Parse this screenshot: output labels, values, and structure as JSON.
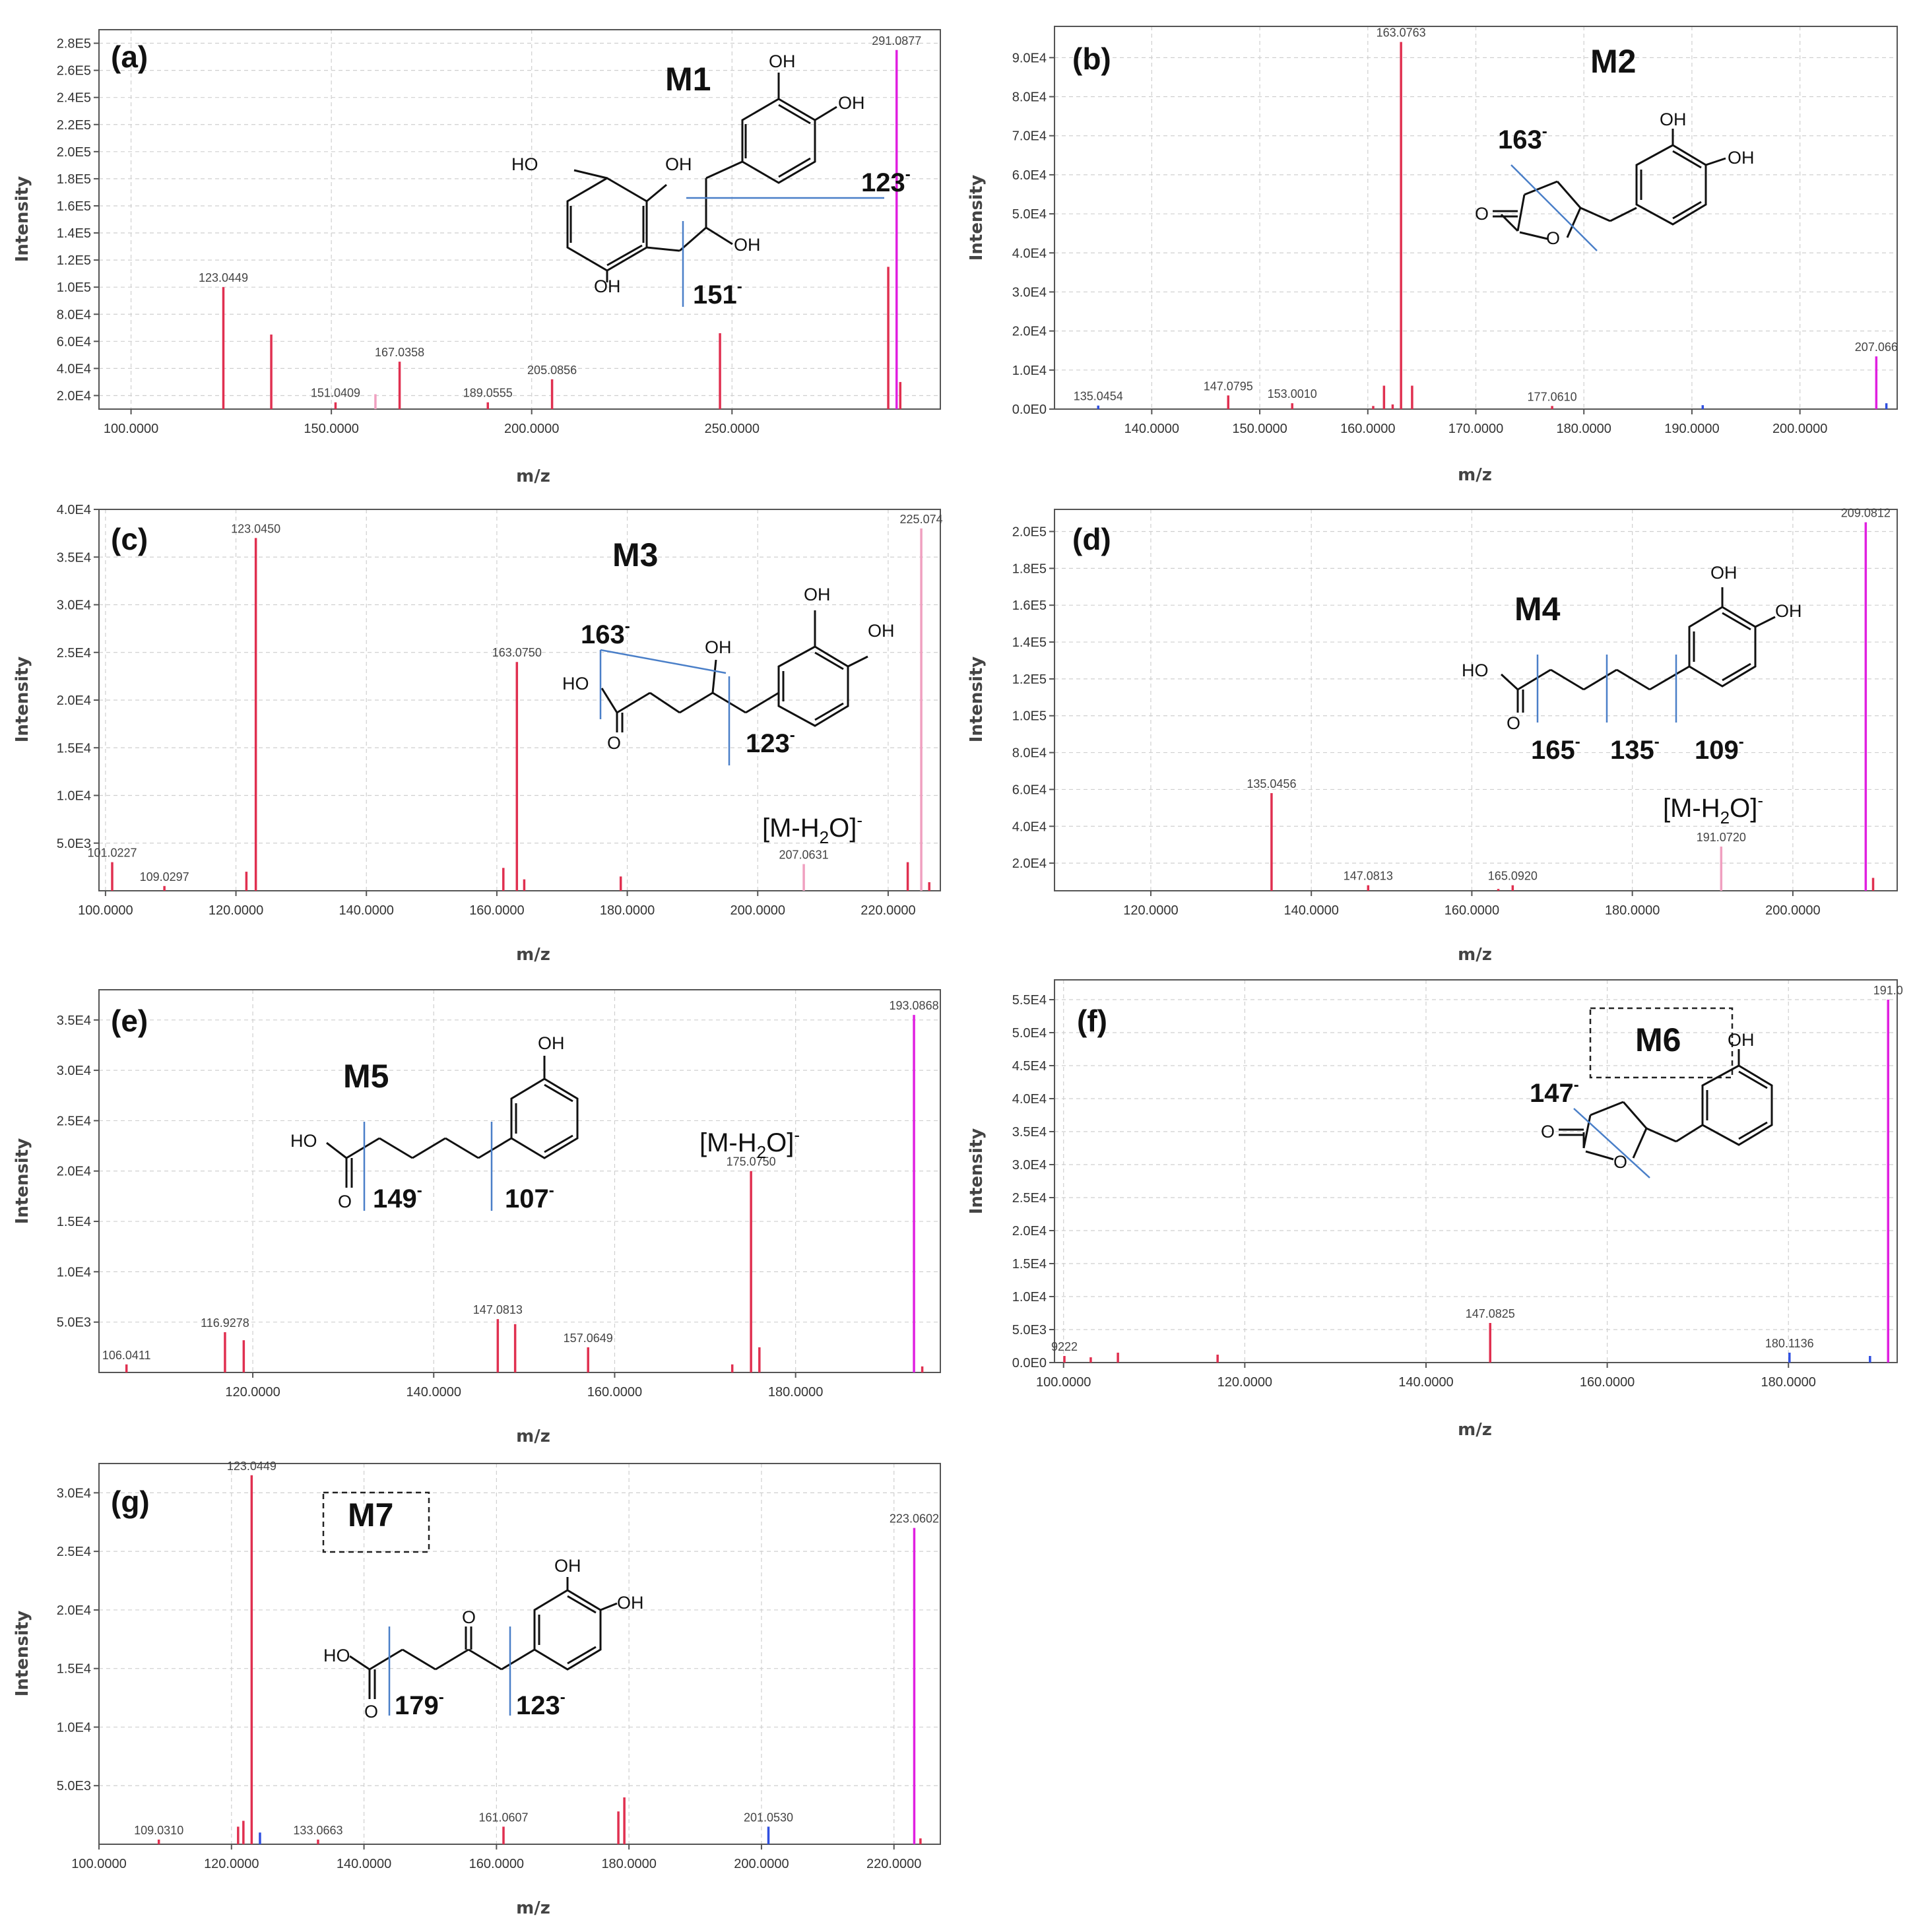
{
  "colors": {
    "peak_red": "#e03050",
    "peak_magenta": "#e020e0",
    "peak_pink": "#f0a0c0",
    "peak_blue": "#3050e0",
    "cut_line": "#4a7fc8",
    "grid": "#cfcfcf",
    "frame": "#555555"
  },
  "chart_data": [
    {
      "id": "a",
      "type": "bar",
      "panel_label": "(a)",
      "compound": "M1",
      "compound_boxed": false,
      "xlabel": "m/z",
      "ylabel": "Intensity",
      "xlim": [
        92,
        302
      ],
      "ylim": [
        10000,
        290000
      ],
      "xticks": [
        100,
        150,
        200,
        250
      ],
      "xtick_labels": [
        "100.0000",
        "150.0000",
        "200.0000",
        "250.0000"
      ],
      "yticks": [
        20000,
        40000,
        60000,
        80000,
        100000,
        120000,
        140000,
        160000,
        180000,
        200000,
        220000,
        240000,
        260000,
        280000
      ],
      "ytick_labels": [
        "2.0E4",
        "4.0E4",
        "6.0E4",
        "8.0E4",
        "1.0E5",
        "1.2E5",
        "1.4E5",
        "1.6E5",
        "1.8E5",
        "2.0E5",
        "2.2E5",
        "2.4E5",
        "2.6E5",
        "2.8E5"
      ],
      "peaks": [
        {
          "x": 123.0449,
          "y": 100000,
          "label": "123.0449",
          "color": "red"
        },
        {
          "x": 135.0,
          "y": 65000,
          "color": "red"
        },
        {
          "x": 151.0409,
          "y": 15000,
          "label": "151.0409",
          "color": "red"
        },
        {
          "x": 161.0,
          "y": 21000,
          "color": "pink"
        },
        {
          "x": 167.0358,
          "y": 45000,
          "label": "167.0358",
          "color": "red"
        },
        {
          "x": 189.0555,
          "y": 15000,
          "label": "189.0555",
          "color": "red"
        },
        {
          "x": 205.0856,
          "y": 32000,
          "label": "205.0856",
          "color": "red"
        },
        {
          "x": 247.0,
          "y": 66000,
          "color": "red"
        },
        {
          "x": 289.0,
          "y": 115000,
          "color": "red"
        },
        {
          "x": 291.0877,
          "y": 275000,
          "label": "291.0877",
          "color": "magenta"
        },
        {
          "x": 292.0,
          "y": 30000,
          "color": "red"
        }
      ],
      "fragments": [
        "123",
        "151"
      ],
      "structure": {
        "OH_1": "OH",
        "OH_2": "OH",
        "OH_3": "OH",
        "OH_4": "OH",
        "HO_1": "HO",
        "OH_5": "OH"
      }
    },
    {
      "id": "b",
      "type": "bar",
      "panel_label": "(b)",
      "compound": "M2",
      "compound_boxed": false,
      "xlabel": "m/z",
      "ylabel": "Intensity",
      "xlim": [
        131,
        209
      ],
      "ylim": [
        0,
        98000
      ],
      "xticks": [
        140,
        150,
        160,
        170,
        180,
        190,
        200
      ],
      "xtick_labels": [
        "140.0000",
        "150.0000",
        "160.0000",
        "170.0000",
        "180.0000",
        "190.0000",
        "200.0000"
      ],
      "yticks": [
        0,
        10000,
        20000,
        30000,
        40000,
        50000,
        60000,
        70000,
        80000,
        90000
      ],
      "ytick_labels": [
        "0.0E0",
        "1.0E4",
        "2.0E4",
        "3.0E4",
        "4.0E4",
        "5.0E4",
        "6.0E4",
        "7.0E4",
        "8.0E4",
        "9.0E4"
      ],
      "peaks": [
        {
          "x": 135.0454,
          "y": 900,
          "label": "135.0454",
          "color": "blue"
        },
        {
          "x": 147.0795,
          "y": 3500,
          "label": "147.0795",
          "color": "red"
        },
        {
          "x": 153.001,
          "y": 1500,
          "label": "153.0010",
          "color": "red"
        },
        {
          "x": 160.5,
          "y": 800,
          "color": "red"
        },
        {
          "x": 161.5,
          "y": 6000,
          "color": "red"
        },
        {
          "x": 162.3,
          "y": 1200,
          "color": "red"
        },
        {
          "x": 163.0763,
          "y": 94000,
          "label": "163.0763",
          "color": "red"
        },
        {
          "x": 164.1,
          "y": 6000,
          "color": "red"
        },
        {
          "x": 177.061,
          "y": 800,
          "label": "177.0610",
          "color": "red"
        },
        {
          "x": 191.0,
          "y": 1000,
          "color": "blue"
        },
        {
          "x": 207.066,
          "y": 13500,
          "label": "207.066",
          "color": "magenta"
        },
        {
          "x": 208.0,
          "y": 1500,
          "color": "blue"
        }
      ],
      "fragments": [
        "163"
      ],
      "structure": {
        "OH_1": "OH",
        "OH_2": "OH",
        "O_ring": "O",
        "O_keto": "O"
      }
    },
    {
      "id": "c",
      "type": "bar",
      "panel_label": "(c)",
      "compound": "M3",
      "compound_boxed": false,
      "xlabel": "m/z",
      "ylabel": "Intensity",
      "xlim": [
        99,
        228
      ],
      "ylim": [
        0,
        40000
      ],
      "xticks": [
        100,
        120,
        140,
        160,
        180,
        200,
        220
      ],
      "xtick_labels": [
        "100.0000",
        "120.0000",
        "140.0000",
        "160.0000",
        "180.0000",
        "200.0000",
        "220.0000"
      ],
      "yticks": [
        5000,
        10000,
        15000,
        20000,
        25000,
        30000,
        35000,
        40000
      ],
      "ytick_labels": [
        "5.0E3",
        "1.0E4",
        "1.5E4",
        "2.0E4",
        "2.5E4",
        "3.0E4",
        "3.5E4",
        "4.0E4"
      ],
      "peaks": [
        {
          "x": 101.0227,
          "y": 3000,
          "label": "101.0227",
          "color": "red"
        },
        {
          "x": 109.0297,
          "y": 500,
          "label": "109.0297",
          "color": "red"
        },
        {
          "x": 121.6,
          "y": 2000,
          "color": "red"
        },
        {
          "x": 123.045,
          "y": 37000,
          "label": "123.0450",
          "color": "red"
        },
        {
          "x": 161.0,
          "y": 2400,
          "color": "red"
        },
        {
          "x": 163.075,
          "y": 24000,
          "label": "163.0750",
          "color": "red"
        },
        {
          "x": 164.2,
          "y": 1200,
          "color": "red"
        },
        {
          "x": 179.0,
          "y": 1500,
          "color": "red"
        },
        {
          "x": 207.0631,
          "y": 2800,
          "label": "207.0631",
          "color": "pink"
        },
        {
          "x": 223.0,
          "y": 3000,
          "color": "red"
        },
        {
          "x": 225.074,
          "y": 38000,
          "label": "225.074",
          "color": "pink"
        },
        {
          "x": 226.3,
          "y": 900,
          "color": "red"
        }
      ],
      "annotation": "[M-H2O]",
      "fragments": [
        "163",
        "123"
      ],
      "structure": {
        "OH_1": "OH",
        "OH_2": "OH",
        "OH_3": "OH",
        "HO_1": "HO",
        "O_keto": "O"
      }
    },
    {
      "id": "d",
      "type": "bar",
      "panel_label": "(d)",
      "compound": "M4",
      "compound_boxed": false,
      "xlabel": "m/z",
      "ylabel": "Intensity",
      "xlim": [
        108,
        213
      ],
      "ylim": [
        5000,
        212000
      ],
      "xticks": [
        120,
        140,
        160,
        180,
        200
      ],
      "xtick_labels": [
        "120.0000",
        "140.0000",
        "160.0000",
        "180.0000",
        "200.0000"
      ],
      "yticks": [
        20000,
        40000,
        60000,
        80000,
        100000,
        120000,
        140000,
        160000,
        180000,
        200000
      ],
      "ytick_labels": [
        "2.0E4",
        "4.0E4",
        "6.0E4",
        "8.0E4",
        "1.0E5",
        "1.2E5",
        "1.4E5",
        "1.6E5",
        "1.8E5",
        "2.0E5"
      ],
      "peaks": [
        {
          "x": 135.0456,
          "y": 58000,
          "label": "135.0456",
          "color": "red"
        },
        {
          "x": 147.0813,
          "y": 8000,
          "label": "147.0813",
          "color": "red"
        },
        {
          "x": 163.3,
          "y": 6000,
          "color": "red"
        },
        {
          "x": 165.092,
          "y": 8000,
          "label": "165.0920",
          "color": "red"
        },
        {
          "x": 191.072,
          "y": 29000,
          "label": "191.0720",
          "color": "pink"
        },
        {
          "x": 209.0812,
          "y": 205000,
          "label": "209.0812",
          "color": "magenta"
        },
        {
          "x": 210.0,
          "y": 12000,
          "color": "red"
        }
      ],
      "annotation": "[M-H2O]",
      "fragments": [
        "165",
        "135",
        "109"
      ],
      "structure": {
        "OH_1": "OH",
        "OH_2": "OH",
        "HO_1": "HO",
        "O_keto": "O"
      }
    },
    {
      "id": "e",
      "type": "bar",
      "panel_label": "(e)",
      "compound": "M5",
      "compound_boxed": false,
      "xlabel": "m/z",
      "ylabel": "Intensity",
      "xlim": [
        103,
        196
      ],
      "ylim": [
        0,
        38000
      ],
      "xticks": [
        120,
        140,
        160,
        180
      ],
      "xtick_labels": [
        "120.0000",
        "140.0000",
        "160.0000",
        "180.0000"
      ],
      "yticks": [
        5000,
        10000,
        15000,
        20000,
        25000,
        30000,
        35000
      ],
      "ytick_labels": [
        "5.0E3",
        "1.0E4",
        "1.5E4",
        "2.0E4",
        "2.5E4",
        "3.0E4",
        "3.5E4"
      ],
      "peaks": [
        {
          "x": 106.0411,
          "y": 800,
          "label": "106.0411",
          "color": "red"
        },
        {
          "x": 116.9278,
          "y": 4000,
          "label": "116.9278",
          "color": "red"
        },
        {
          "x": 119.0,
          "y": 3200,
          "color": "red"
        },
        {
          "x": 147.0813,
          "y": 5300,
          "label": "147.0813",
          "color": "red"
        },
        {
          "x": 149.0,
          "y": 4800,
          "color": "red"
        },
        {
          "x": 157.0649,
          "y": 2500,
          "label": "157.0649",
          "color": "red"
        },
        {
          "x": 173.0,
          "y": 800,
          "color": "red"
        },
        {
          "x": 175.075,
          "y": 20000,
          "label": "175.0750",
          "color": "red"
        },
        {
          "x": 176.0,
          "y": 2500,
          "color": "red"
        },
        {
          "x": 193.0868,
          "y": 35500,
          "label": "193.0868",
          "color": "magenta"
        },
        {
          "x": 194.0,
          "y": 600,
          "color": "red"
        }
      ],
      "annotation": "[M-H2O]",
      "fragments": [
        "149",
        "107"
      ],
      "structure": {
        "OH_1": "OH",
        "HO_1": "HO",
        "O_keto": "O"
      }
    },
    {
      "id": "f",
      "type": "bar",
      "panel_label": "(f)",
      "compound": "M6",
      "compound_boxed": true,
      "xlabel": "m/z",
      "ylabel": "Intensity",
      "xlim": [
        99,
        192
      ],
      "ylim": [
        0,
        58000
      ],
      "xticks": [
        100,
        120,
        140,
        160,
        180
      ],
      "xtick_labels": [
        "100.0000",
        "120.0000",
        "140.0000",
        "160.0000",
        "180.0000"
      ],
      "yticks": [
        0,
        5000,
        10000,
        15000,
        20000,
        25000,
        30000,
        35000,
        40000,
        45000,
        50000,
        55000
      ],
      "ytick_labels": [
        "0.0E0",
        "5.0E3",
        "1.0E4",
        "1.5E4",
        "2.0E4",
        "2.5E4",
        "3.0E4",
        "3.5E4",
        "4.0E4",
        "4.5E4",
        "5.0E4",
        "5.5E4"
      ],
      "peaks": [
        {
          "x": 100.0922,
          "y": 1000,
          "label": "9222",
          "color": "red"
        },
        {
          "x": 103.0,
          "y": 800,
          "color": "red"
        },
        {
          "x": 106.0,
          "y": 1500,
          "color": "red"
        },
        {
          "x": 117.0,
          "y": 1200,
          "color": "red"
        },
        {
          "x": 147.0825,
          "y": 6000,
          "label": "147.0825",
          "color": "red"
        },
        {
          "x": 180.1136,
          "y": 1500,
          "label": "180.1136",
          "color": "blue"
        },
        {
          "x": 189.0,
          "y": 1000,
          "color": "blue"
        },
        {
          "x": 191.0,
          "y": 55000,
          "label": "191.0",
          "color": "magenta"
        }
      ],
      "fragments": [
        "147"
      ],
      "structure": {
        "OH_1": "OH",
        "O_ring": "O",
        "O_keto": "O"
      }
    },
    {
      "id": "g",
      "type": "bar",
      "panel_label": "(g)",
      "compound": "M7",
      "compound_boxed": true,
      "xlabel": "m/z",
      "ylabel": "Intensity",
      "xlim": [
        100,
        227
      ],
      "ylim": [
        0,
        32500
      ],
      "xticks": [
        100,
        120,
        140,
        160,
        180,
        200,
        220
      ],
      "xtick_labels": [
        "100.0000",
        "120.0000",
        "140.0000",
        "160.0000",
        "180.0000",
        "200.0000",
        "220.0000"
      ],
      "yticks": [
        5000,
        10000,
        15000,
        20000,
        25000,
        30000
      ],
      "ytick_labels": [
        "5.0E3",
        "1.0E4",
        "1.5E4",
        "2.0E4",
        "2.5E4",
        "3.0E4"
      ],
      "peaks": [
        {
          "x": 109.031,
          "y": 400,
          "label": "109.0310",
          "color": "red"
        },
        {
          "x": 121.0,
          "y": 1500,
          "color": "red"
        },
        {
          "x": 121.8,
          "y": 2000,
          "color": "red"
        },
        {
          "x": 123.0449,
          "y": 31500,
          "label": "123.0449",
          "color": "red"
        },
        {
          "x": 124.3,
          "y": 1000,
          "color": "blue"
        },
        {
          "x": 133.0663,
          "y": 400,
          "label": "133.0663",
          "color": "red"
        },
        {
          "x": 161.0607,
          "y": 1500,
          "label": "161.0607",
          "color": "red"
        },
        {
          "x": 178.4,
          "y": 2800,
          "color": "red"
        },
        {
          "x": 179.3,
          "y": 4000,
          "color": "red"
        },
        {
          "x": 201.053,
          "y": 1500,
          "label": "201.0530",
          "color": "blue"
        },
        {
          "x": 223.0602,
          "y": 27000,
          "label": "223.0602",
          "color": "magenta"
        },
        {
          "x": 224.0,
          "y": 500,
          "color": "red"
        }
      ],
      "fragments": [
        "179",
        "123"
      ],
      "structure": {
        "OH_1": "OH",
        "OH_2": "OH",
        "HO_1": "HO",
        "O_keto": "O",
        "O_keto2": "O"
      }
    }
  ]
}
